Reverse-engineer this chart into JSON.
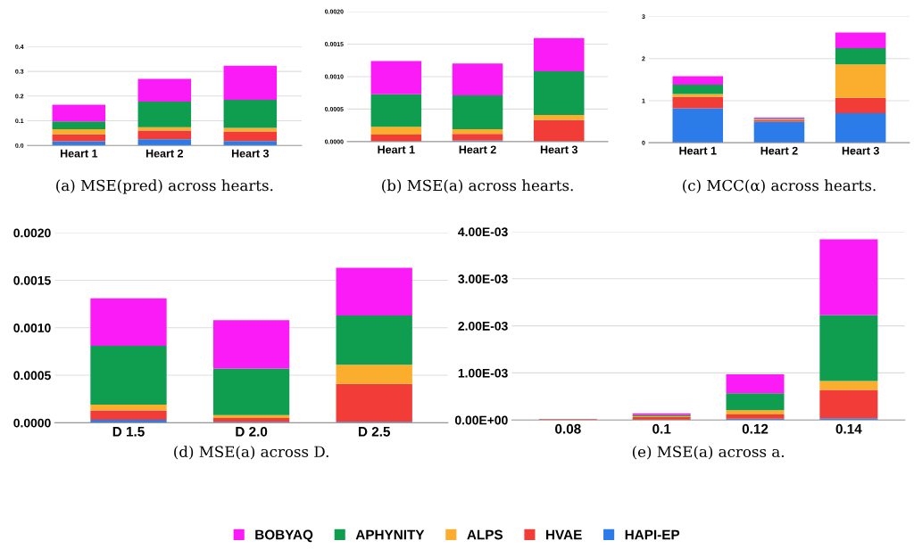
{
  "chart_data": [
    {
      "type": "bar",
      "stacked": true,
      "title": "(a) MSE(pred) across hearts.",
      "categories": [
        "Heart 1",
        "Heart 2",
        "Heart 3"
      ],
      "ylim": [
        0,
        0.4
      ],
      "yticks": [
        {
          "value": 0,
          "label": "0.0"
        },
        0.1,
        0.2,
        0.3,
        0.4
      ],
      "grid": "y",
      "legend": "bottom",
      "series": [
        {
          "name": "HAPI-EP",
          "color": "#2b7be8",
          "values": [
            0.017,
            0.025,
            0.018
          ]
        },
        {
          "name": "HVAE",
          "color": "#f23c37",
          "values": [
            0.028,
            0.035,
            0.039
          ]
        },
        {
          "name": "ALPS",
          "color": "#fbae2e",
          "values": [
            0.021,
            0.014,
            0.014
          ]
        },
        {
          "name": "APHYNITY",
          "color": "#0f9d4f",
          "values": [
            0.031,
            0.104,
            0.114
          ]
        },
        {
          "name": "BOBYAQ",
          "color": "#fb1bf7",
          "values": [
            0.068,
            0.092,
            0.138
          ]
        }
      ]
    },
    {
      "type": "bar",
      "stacked": true,
      "title": "(b) MSE(a) across hearts.",
      "categories": [
        "Heart 1",
        "Heart 2",
        "Heart 3"
      ],
      "ylim": [
        0,
        0.002
      ],
      "yticks": [
        {
          "value": 0,
          "label": "0.0000"
        },
        {
          "value": 0.0005,
          "label": "0.0005"
        },
        {
          "value": 0.001,
          "label": "0.0010"
        },
        {
          "value": 0.0015,
          "label": "0.0015"
        },
        {
          "value": 0.002,
          "label": "0.0020"
        }
      ],
      "grid": "y",
      "series": [
        {
          "color": "#2b7be8",
          "values": [
            null,
            2e-05,
            null
          ]
        },
        {
          "color": "#f23c37",
          "values": [
            0.00011,
            0.0001,
            0.00033
          ]
        },
        {
          "color": "#fbae2e",
          "values": [
            0.00012,
            7e-05,
            8e-05
          ]
        },
        {
          "color": "#0f9d4f",
          "values": [
            0.0005,
            0.00052,
            0.00067
          ]
        },
        {
          "color": "#fb1bf7",
          "values": [
            0.00051,
            0.00049,
            0.00051
          ]
        }
      ]
    },
    {
      "type": "bar",
      "stacked": true,
      "title": "(c) MCC(α) across hearts.",
      "categories": [
        "Heart 1",
        "Heart 2",
        "Heart 3"
      ],
      "ylim": [
        0,
        3
      ],
      "yticks": [
        0,
        1,
        2,
        3
      ],
      "grid": "y",
      "series": [
        {
          "color": "#2b7be8",
          "values": [
            0.82,
            0.5,
            0.7
          ]
        },
        {
          "color": "#f23c37",
          "values": [
            0.27,
            0.04,
            0.37
          ]
        },
        {
          "color": "#fbae2e",
          "values": [
            0.07,
            0.02,
            0.79
          ]
        },
        {
          "color": "#0f9d4f",
          "values": [
            0.22,
            0.02,
            0.39
          ]
        },
        {
          "color": "#fb1bf7",
          "values": [
            0.2,
            0.02,
            0.37
          ]
        }
      ]
    },
    {
      "type": "bar",
      "stacked": true,
      "title": "(d) MSE(a) across D.",
      "categories": [
        "D 1.5",
        "D 2.0",
        "D 2.5"
      ],
      "ylim": [
        0,
        0.002
      ],
      "yticks": [
        {
          "value": 0,
          "label": "0.0000"
        },
        {
          "value": 0.0005,
          "label": "0.0005"
        },
        {
          "value": 0.001,
          "label": "0.0010"
        },
        {
          "value": 0.0015,
          "label": "0.0015"
        },
        {
          "value": 0.002,
          "label": "0.0020"
        }
      ],
      "grid": "y",
      "series": [
        {
          "color": "#2b7be8",
          "values": [
            3e-05,
            1e-05,
            1e-05
          ]
        },
        {
          "color": "#f23c37",
          "values": [
            0.0001,
            4e-05,
            0.0004
          ]
        },
        {
          "color": "#fbae2e",
          "values": [
            6e-05,
            3e-05,
            0.0002
          ]
        },
        {
          "color": "#0f9d4f",
          "values": [
            0.00062,
            0.00049,
            0.00052
          ]
        },
        {
          "color": "#fb1bf7",
          "values": [
            0.0005,
            0.00051,
            0.0005
          ]
        }
      ]
    },
    {
      "type": "bar",
      "stacked": true,
      "title": "(e) MSE(a) across a.",
      "categories": [
        "0.08",
        "0.1",
        "0.12",
        "0.14"
      ],
      "ylim": [
        0,
        0.004
      ],
      "yticks": [
        {
          "value": 0,
          "label": "0.00E+00"
        },
        {
          "value": 0.001,
          "label": "1.00E-03"
        },
        {
          "value": 0.002,
          "label": "2.00E-03"
        },
        {
          "value": 0.003,
          "label": "3.00E-03"
        },
        {
          "value": 0.004,
          "label": "4.00E-03"
        }
      ],
      "grid": "y",
      "series": [
        {
          "color": "#2b7be8",
          "values": [
            0,
            0,
            3e-05,
            4e-05
          ]
        },
        {
          "color": "#f23c37",
          "values": [
            2e-05,
            6e-05,
            9e-05,
            0.0006
          ]
        },
        {
          "color": "#fbae2e",
          "values": [
            0,
            2e-05,
            9e-05,
            0.00019
          ]
        },
        {
          "color": "#0f9d4f",
          "values": [
            0,
            3e-05,
            0.00036,
            0.0014
          ]
        },
        {
          "color": "#fb1bf7",
          "values": [
            0,
            3e-05,
            0.0004,
            0.00161
          ]
        }
      ]
    }
  ]
}
